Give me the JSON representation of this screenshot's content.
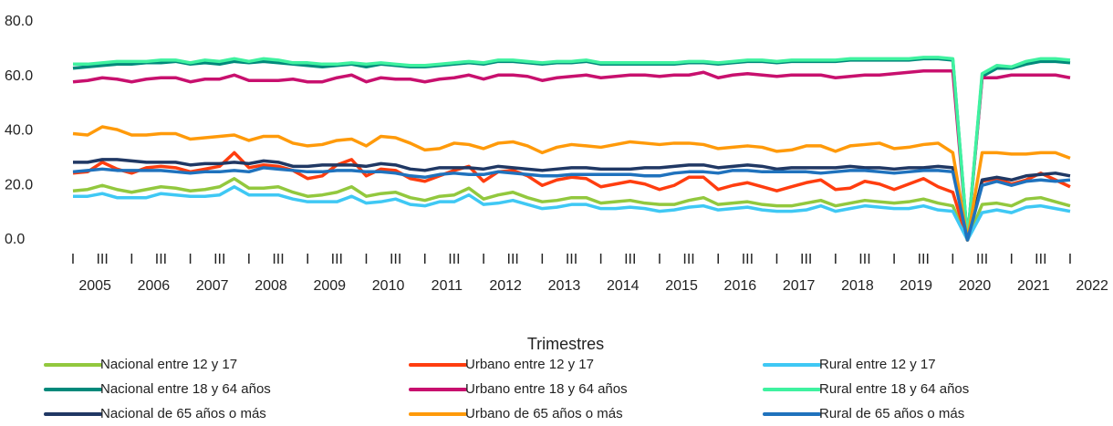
{
  "chart_data": {
    "type": "line",
    "x_label": "Trimestres",
    "categories": [
      "I",
      null,
      "III",
      null,
      "I",
      null,
      "III",
      null,
      "I",
      null,
      "III",
      null,
      "I",
      null,
      "III",
      null,
      "I",
      null,
      "III",
      null,
      "I",
      null,
      "III",
      null,
      "I",
      null,
      "III",
      null,
      "I",
      null,
      "III",
      null,
      "I",
      null,
      "III",
      null,
      "I",
      null,
      "III",
      null,
      "I",
      null,
      "III",
      null,
      "I",
      null,
      "III",
      null,
      "I",
      null,
      "III",
      null,
      "I",
      null,
      "III",
      null,
      "I",
      null,
      "III",
      null,
      "I",
      null,
      "III",
      null,
      "I",
      null,
      "III",
      null,
      "I"
    ],
    "years": [
      "2005",
      "2006",
      "2007",
      "2008",
      "2009",
      "2010",
      "2011",
      "2012",
      "2013",
      "2014",
      "2015",
      "2016",
      "2017",
      "2018",
      "2019",
      "2020",
      "2021",
      "2022"
    ],
    "ylim": [
      0,
      80
    ],
    "yticks": [
      {
        "value": 0,
        "label": "0.0"
      },
      {
        "value": 20,
        "label": "20.0"
      },
      {
        "value": 40,
        "label": "40.0"
      },
      {
        "value": 60,
        "label": "60.0"
      },
      {
        "value": 80,
        "label": "80.0"
      }
    ],
    "grid": false,
    "series": [
      {
        "name": "Nacional entre 12 y 17",
        "color": "#92c83e",
        "values": [
          18,
          18.5,
          20,
          18.5,
          17.5,
          18.5,
          19.5,
          19,
          18,
          18.5,
          19.5,
          22.5,
          19,
          19,
          19.5,
          17.5,
          16,
          16.5,
          17.5,
          19.5,
          16,
          17,
          17.5,
          15.5,
          14.5,
          16,
          16.5,
          19,
          15,
          16.5,
          17.5,
          15.5,
          14,
          14.5,
          15.5,
          15.5,
          13.5,
          14,
          14.5,
          13.5,
          13,
          13,
          14.5,
          15.5,
          13,
          13.5,
          14,
          13,
          12.5,
          12.5,
          13.5,
          14.5,
          12.5,
          13.5,
          14.5,
          14,
          13.5,
          14,
          15,
          13.5,
          12.5,
          0,
          13,
          13.5,
          12.5,
          15,
          15.5,
          14,
          12.5
        ]
      },
      {
        "name": "Urbano entre 12 y 17",
        "color": "#ff3d0f",
        "values": [
          24.5,
          25,
          28.5,
          26,
          24.5,
          26.5,
          27,
          26.5,
          25,
          26,
          27,
          32,
          26.5,
          27.5,
          27,
          25.5,
          22.5,
          23.5,
          27.5,
          29.5,
          23.5,
          26,
          25.5,
          22.5,
          21.5,
          23.5,
          25.5,
          27,
          21.5,
          25,
          25.5,
          23.5,
          20,
          22,
          23,
          22.5,
          19.5,
          20.5,
          21.5,
          20.5,
          18.5,
          20,
          23,
          23,
          18.5,
          20,
          21,
          19.5,
          18,
          19.5,
          21,
          22,
          18.5,
          19,
          21.5,
          20.5,
          18.5,
          20.5,
          22.5,
          19.5,
          17.5,
          0,
          21.5,
          22.5,
          20.5,
          22,
          24.5,
          22,
          19.5
        ]
      },
      {
        "name": "Rural entre 12 y 17",
        "color": "#3fc8f4",
        "values": [
          16,
          16,
          17,
          15.5,
          15.5,
          15.5,
          17,
          16.5,
          16,
          16,
          16.5,
          19.5,
          16.5,
          16.5,
          16.5,
          15,
          14,
          14,
          14,
          16,
          13.5,
          14,
          15,
          13,
          12.5,
          14,
          14,
          16.5,
          13,
          13.5,
          14.5,
          13,
          11.5,
          12,
          13,
          13,
          11.5,
          11.5,
          12,
          11.5,
          10.5,
          11,
          12,
          12.5,
          11,
          11.5,
          12,
          11,
          10.5,
          10.5,
          11,
          12.5,
          10.5,
          11.5,
          12.5,
          12,
          11.5,
          11.5,
          12.5,
          11,
          10.5,
          0,
          10,
          11,
          10,
          12,
          12.5,
          11.5,
          10.5
        ]
      },
      {
        "name": "Nacional entre 18 y 64 años",
        "color": "#00897b",
        "values": [
          63,
          63.5,
          64,
          64.5,
          64.5,
          65,
          65,
          65.5,
          64.5,
          65,
          64.5,
          65.5,
          65,
          65.5,
          65,
          64.5,
          64,
          63.5,
          64,
          64.5,
          63.5,
          64.5,
          64,
          63.5,
          63.5,
          64,
          64.5,
          65,
          64.5,
          65.5,
          65.5,
          65,
          64.5,
          65,
          65,
          65.5,
          64.5,
          64.5,
          64.5,
          64.5,
          64.5,
          64.5,
          65,
          65,
          64.5,
          65,
          65.5,
          65.5,
          65,
          65.5,
          65.5,
          65.5,
          65.5,
          66,
          66,
          66,
          66,
          66,
          66.5,
          66.5,
          66,
          0,
          60,
          63,
          63,
          64.5,
          65.5,
          65.5,
          65
        ]
      },
      {
        "name": "Urbano entre 18 y 64 años",
        "color": "#c8106e",
        "values": [
          58,
          58.5,
          59.5,
          59,
          58,
          59,
          59.5,
          59.5,
          58,
          59,
          59,
          60.5,
          58.5,
          58.5,
          58.5,
          59,
          58,
          58,
          59.5,
          60.5,
          58,
          59.5,
          59,
          59,
          58,
          59,
          59.5,
          60.5,
          59,
          60.5,
          60.5,
          60,
          58.5,
          59.5,
          60,
          60.5,
          59.5,
          60,
          60.5,
          60.5,
          60,
          60.5,
          60.5,
          61.5,
          59.5,
          60.5,
          61,
          60.5,
          60,
          60.5,
          60.5,
          60.5,
          59.5,
          60,
          60.5,
          60.5,
          61,
          61.5,
          62,
          62,
          62,
          0,
          59.5,
          59.5,
          60.5,
          60.5,
          60.5,
          60.5,
          59.5
        ]
      },
      {
        "name": "Rural entre 18 y 64 años",
        "color": "#3ff2a0",
        "values": [
          64.5,
          64.5,
          65,
          65.5,
          65.5,
          65.5,
          66,
          66,
          65,
          66,
          65.5,
          66.5,
          65.5,
          66.5,
          66,
          65,
          65,
          64.5,
          64.5,
          65,
          64.5,
          65,
          64.5,
          64,
          64,
          64.5,
          65,
          65.5,
          65,
          66,
          66,
          65.5,
          65,
          65.5,
          65.5,
          66,
          65,
          65,
          65,
          65,
          65,
          65,
          65.5,
          65.5,
          65,
          65.5,
          66,
          66,
          65.5,
          66,
          66,
          66,
          66,
          66.5,
          66.5,
          66.5,
          66.5,
          66.5,
          67,
          67,
          66.5,
          0,
          61,
          64,
          63.5,
          65.5,
          66.5,
          66.5,
          66
        ]
      },
      {
        "name": "Nacional de 65 años o más",
        "color": "#203864",
        "values": [
          28.5,
          28.5,
          29.5,
          29.5,
          29,
          28.5,
          28.5,
          28.5,
          27.5,
          28,
          28,
          28.5,
          28,
          29,
          28.5,
          27,
          27,
          27.5,
          27.5,
          27.5,
          27,
          28,
          27.5,
          26,
          25.5,
          26.5,
          26.5,
          26.5,
          26,
          27,
          26.5,
          26,
          25.5,
          26,
          26.5,
          26.5,
          26,
          26,
          26,
          26.5,
          26.5,
          27,
          27.5,
          27.5,
          26.5,
          27,
          27.5,
          27,
          26,
          26.5,
          26.5,
          26.5,
          26.5,
          27,
          26.5,
          26.5,
          26,
          26.5,
          26.5,
          27,
          26.5,
          0,
          22,
          23,
          22,
          23.5,
          24,
          24.5,
          23.5
        ]
      },
      {
        "name": "Urbano de 65 años o más",
        "color": "#ff9a0a",
        "values": [
          39,
          38.5,
          41.5,
          40.5,
          38.5,
          38.5,
          39,
          39,
          37,
          37.5,
          38,
          38.5,
          36.5,
          38,
          38,
          35.5,
          34.5,
          35,
          36.5,
          37,
          34.5,
          38,
          37.5,
          35.5,
          33,
          33.5,
          35.5,
          35,
          33.5,
          35.5,
          36,
          34.5,
          32,
          34,
          35,
          34.5,
          34,
          35,
          36,
          35.5,
          35,
          35.5,
          35.5,
          35,
          33.5,
          34,
          34.5,
          34,
          32.5,
          33,
          34.5,
          34.5,
          32.5,
          34.5,
          35,
          35.5,
          33.5,
          34,
          35,
          35.5,
          32,
          0,
          32,
          32,
          31.5,
          31.5,
          32,
          32,
          30
        ]
      },
      {
        "name": "Rural de 65 años o más",
        "color": "#1f72bd",
        "values": [
          25,
          25.5,
          26,
          25.5,
          25.5,
          25.5,
          25.5,
          25,
          24.5,
          25,
          25,
          25.5,
          25,
          26.5,
          26,
          25.5,
          25,
          25,
          25.5,
          25.5,
          25,
          25,
          24.5,
          23.5,
          23,
          24,
          24.5,
          24,
          24,
          25,
          24.5,
          24,
          23.5,
          23.5,
          24,
          24,
          24,
          24,
          24,
          23.5,
          23.5,
          24.5,
          25,
          25,
          24.5,
          25.5,
          25.5,
          25,
          25,
          25,
          25,
          24.5,
          25,
          25.5,
          25.5,
          25,
          24.5,
          25,
          25.5,
          25.5,
          25,
          0,
          20,
          21.5,
          20,
          21.5,
          22,
          21.5,
          22
        ]
      }
    ]
  }
}
